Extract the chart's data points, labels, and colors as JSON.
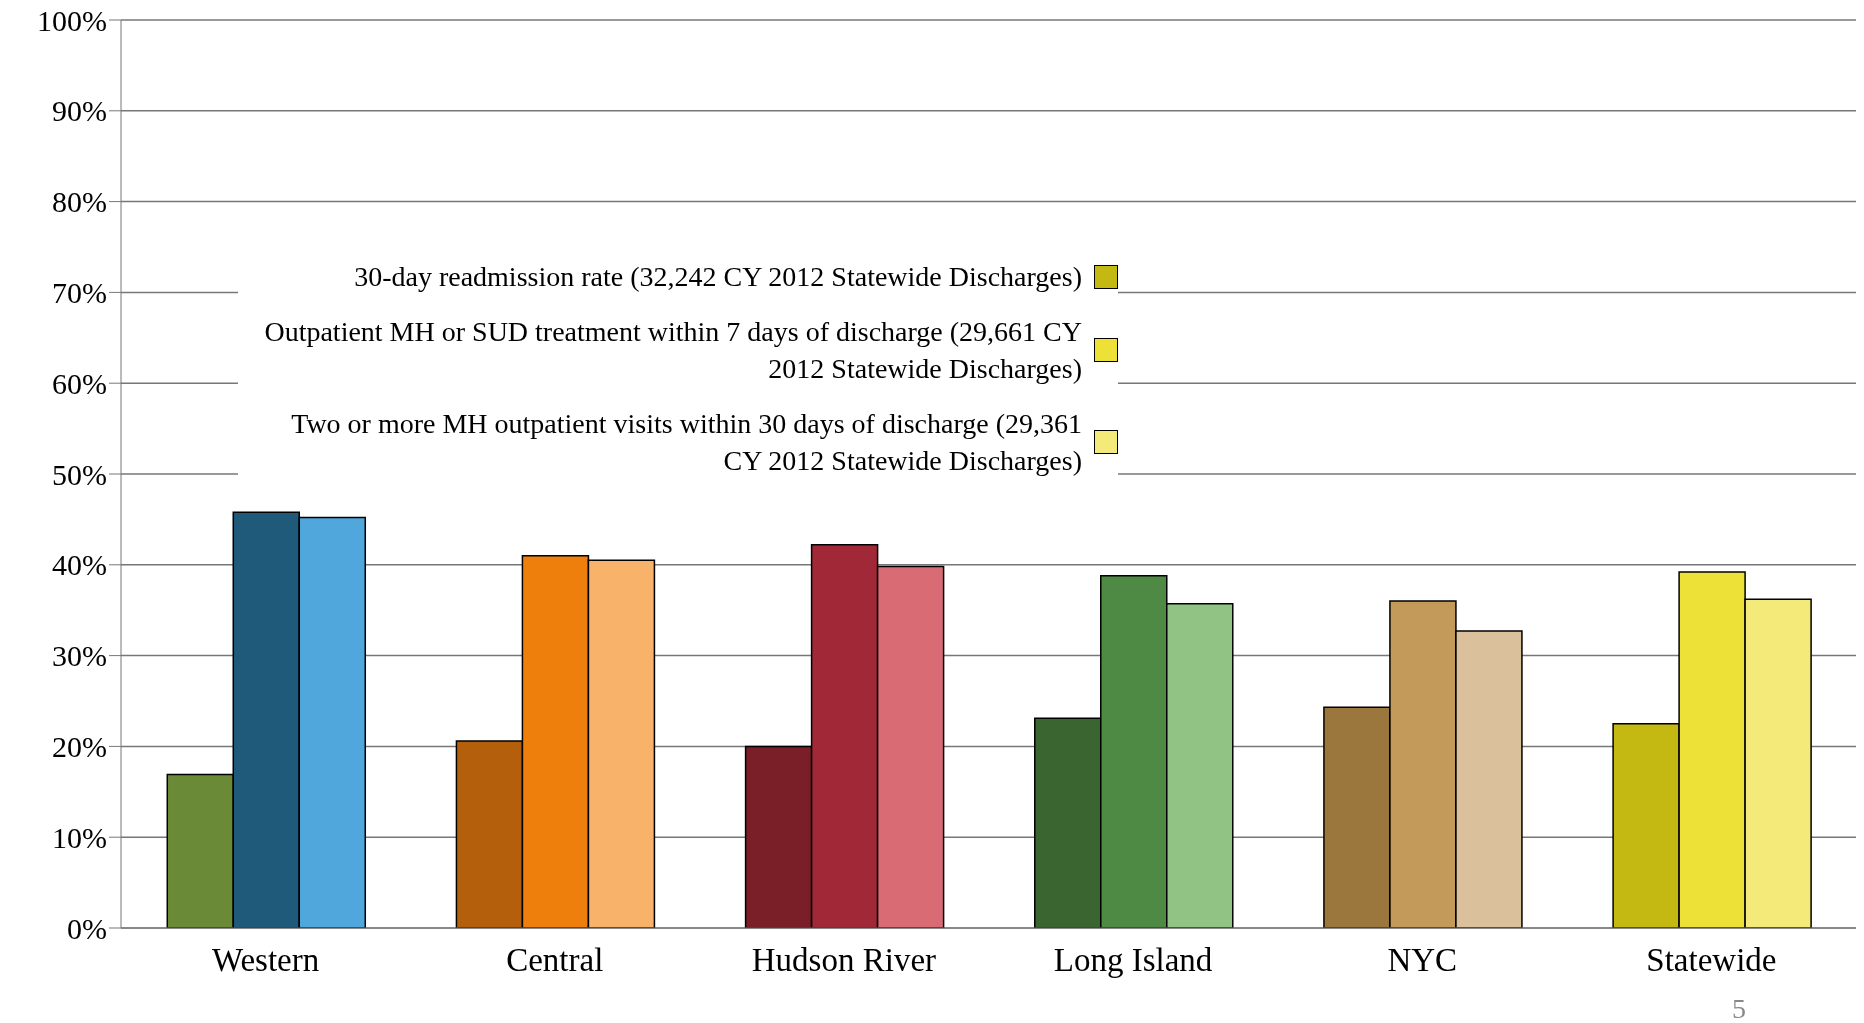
{
  "chart_data": {
    "type": "bar",
    "categories": [
      "Western",
      "Central",
      "Hudson River",
      "Long Island",
      "NYC",
      "Statewide"
    ],
    "series": [
      {
        "name": "30-day readmission rate (32,242 CY 2012 Statewide Discharges)",
        "color": "#c4b812",
        "colors": [
          "#6b8a38",
          "#b35f0c",
          "#7a1f28",
          "#3b6530",
          "#9b763d",
          "#c4b812"
        ],
        "values": [
          16.9,
          20.6,
          20.0,
          23.1,
          24.3,
          22.5
        ]
      },
      {
        "name": "Outpatient MH or SUD treatment within 7 days of discharge (29,661 CY 2012 Statewide Discharges)",
        "color": "#ede037",
        "colors": [
          "#1f5a7a",
          "#ef7f0c",
          "#a12836",
          "#4e8a43",
          "#c49a5a",
          "#ede037"
        ],
        "values": [
          45.8,
          41.0,
          42.2,
          38.8,
          36.0,
          39.2
        ]
      },
      {
        "name": "Two or more MH outpatient visits within 30 days of discharge (29,361 CY 2012 Statewide Discharges)",
        "color": "#f4ea7a",
        "colors": [
          "#4fa7dc",
          "#f9b269",
          "#d96b75",
          "#91c484",
          "#dbc09c",
          "#f4ea7a"
        ],
        "values": [
          45.2,
          40.5,
          39.8,
          35.7,
          32.7,
          36.2
        ]
      }
    ],
    "ylim": [
      0,
      100
    ],
    "yticks": [
      {
        "value": 0,
        "label": "0%"
      },
      {
        "value": 10,
        "label": "10%"
      },
      {
        "value": 20,
        "label": "20%"
      },
      {
        "value": 30,
        "label": "30%"
      },
      {
        "value": 40,
        "label": "40%"
      },
      {
        "value": 50,
        "label": "50%"
      },
      {
        "value": 60,
        "label": "60%"
      },
      {
        "value": 70,
        "label": "70%"
      },
      {
        "value": 80,
        "label": "80%"
      },
      {
        "value": 90,
        "label": "90%"
      },
      {
        "value": 100,
        "label": "100%"
      }
    ],
    "grid": "y",
    "legend": "top left",
    "annotations": [
      "5"
    ]
  }
}
